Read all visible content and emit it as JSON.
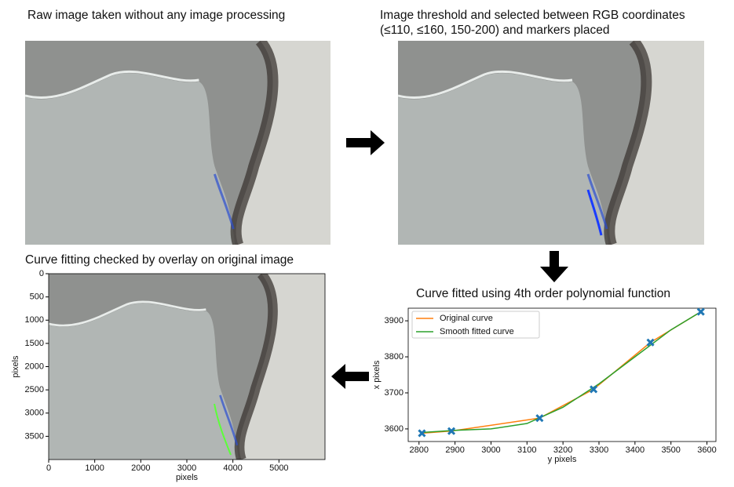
{
  "panels": {
    "raw": {
      "title": "Raw image taken without any image processing"
    },
    "threshold": {
      "title": [
        "Image threshold and selected between RGB coordinates",
        "(≤110, ≤160, 150-200) and markers placed"
      ]
    }
  },
  "chart_data": [
    {
      "type": "image",
      "title": "Curve fitting checked by overlay on original image",
      "xlabel": "pixels",
      "ylabel": "pixels",
      "xlim": [
        0,
        6000
      ],
      "ylim": [
        0,
        4000
      ],
      "xticks": [
        0,
        1000,
        2000,
        3000,
        4000,
        5000
      ],
      "yticks": [
        0,
        500,
        1000,
        1500,
        2000,
        2500,
        3000,
        3500
      ]
    },
    {
      "type": "line",
      "title": "Curve fitted using 4th order polynomial function",
      "xlabel": "y pixels",
      "ylabel": "x pixels",
      "xlim": [
        2770,
        3625
      ],
      "ylim": [
        3565,
        3935
      ],
      "xticks": [
        2800,
        2900,
        3000,
        3100,
        3200,
        3300,
        3400,
        3500,
        3600
      ],
      "yticks": [
        3600,
        3700,
        3800,
        3900
      ],
      "legend": "upper left",
      "series": [
        {
          "name": "Original curve",
          "color": "#ff7f0e",
          "x": [
            2808,
            2890,
            3135,
            3285,
            3443,
            3583
          ],
          "values": [
            3588,
            3594,
            3630,
            3710,
            3840,
            3925
          ]
        },
        {
          "name": "Smooth fitted curve",
          "color": "#2ca02c",
          "x": [
            2808,
            2900,
            3000,
            3100,
            3200,
            3300,
            3400,
            3500,
            3583
          ],
          "values": [
            3590,
            3596,
            3600,
            3615,
            3660,
            3725,
            3800,
            3875,
            3925
          ]
        }
      ],
      "markers": {
        "color": "#1f77b4",
        "x": [
          2808,
          2890,
          3135,
          3285,
          3443,
          3583
        ],
        "values": [
          3588,
          3594,
          3630,
          3710,
          3840,
          3925
        ]
      }
    }
  ]
}
